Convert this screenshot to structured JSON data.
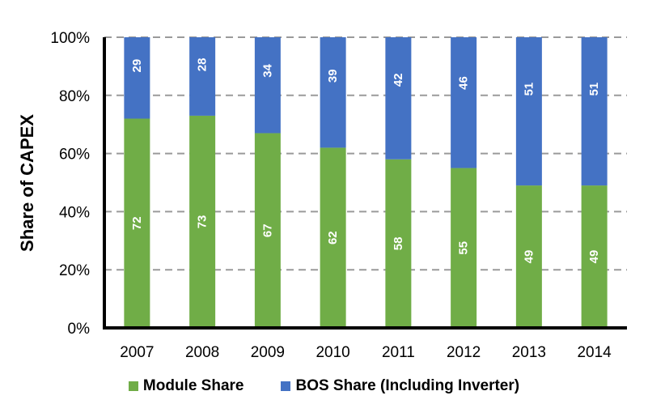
{
  "chart_data": {
    "type": "bar",
    "stacked": true,
    "title": "",
    "xlabel": "",
    "ylabel": "Share of CAPEX",
    "ylim": [
      0,
      100
    ],
    "yticks": [
      "0%",
      "20%",
      "40%",
      "60%",
      "80%",
      "100%"
    ],
    "grid": true,
    "legend": "bottom",
    "categories": [
      "2007",
      "2008",
      "2009",
      "2010",
      "2011",
      "2012",
      "2013",
      "2014"
    ],
    "series": [
      {
        "name": "Module Share",
        "color": "#70AD47",
        "values": [
          72,
          73,
          67,
          62,
          58,
          55,
          49,
          49
        ]
      },
      {
        "name": "BOS Share (Including Inverter)",
        "color": "#4472C4",
        "values": [
          29,
          28,
          34,
          39,
          42,
          46,
          51,
          51
        ]
      }
    ]
  }
}
